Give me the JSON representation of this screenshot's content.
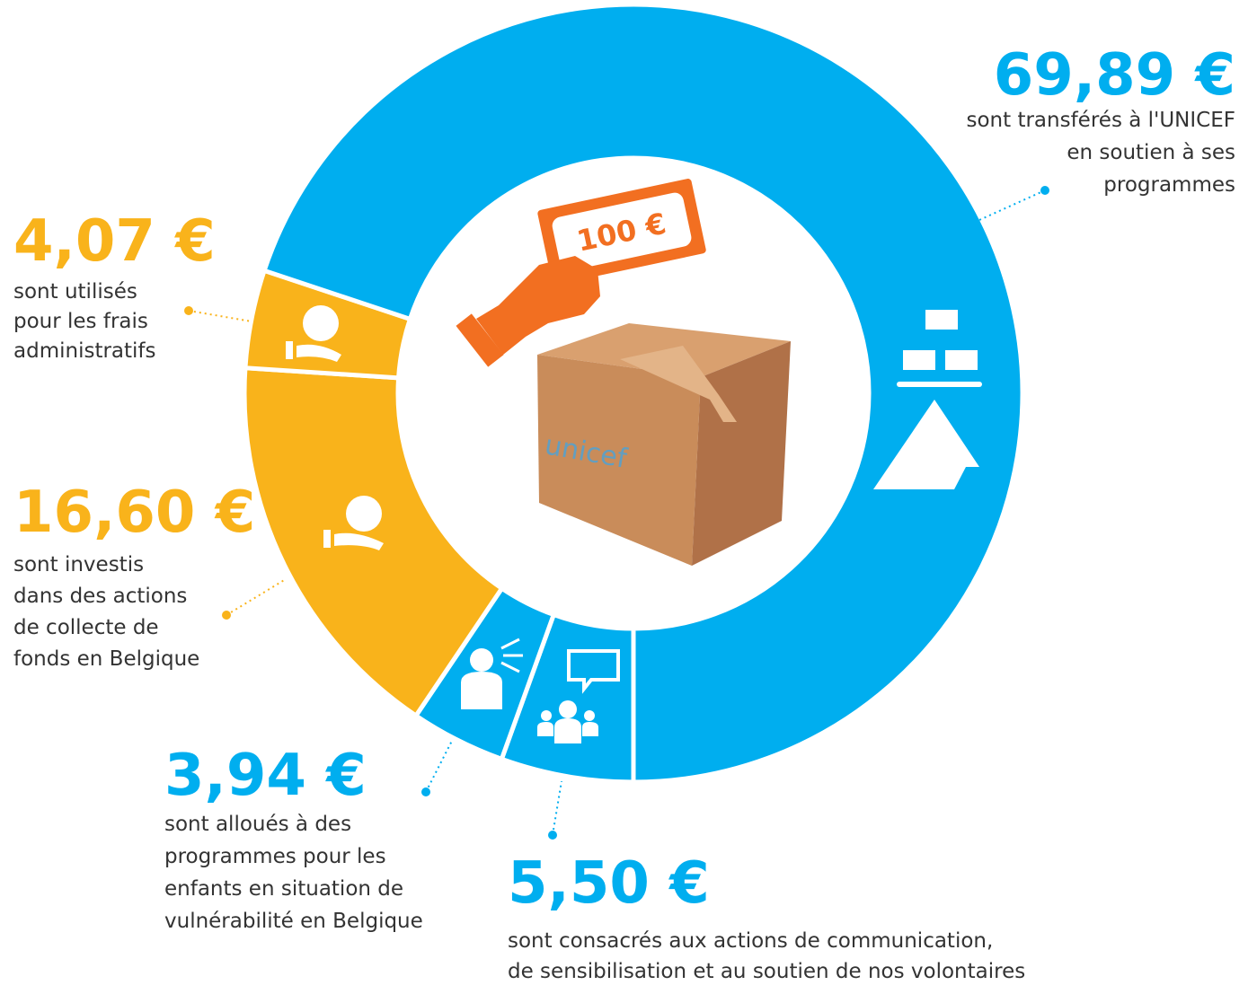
{
  "chart_data": {
    "type": "donut",
    "values": [
      5.5,
      3.94,
      16.6,
      4.07,
      69.89
    ],
    "value_labels": [
      "5,50 €",
      "3,94 €",
      "16,60 €",
      "4,07 €",
      "69,89 €"
    ],
    "colors": [
      "#00aeef",
      "#00aeef",
      "#f9b31b",
      "#f9b31b",
      "#00aeef"
    ],
    "descriptions": [
      [
        "sont consacrés aux actions de communication,",
        "de sensibilisation et au soutien de nos volontaires"
      ],
      [
        "sont alloués à des",
        "programmes pour les",
        "enfants en situation de",
        "vulnérabilité en Belgique"
      ],
      [
        "sont investis",
        "dans des actions",
        "de collecte de",
        "fonds en Belgique"
      ],
      [
        "sont utilisés",
        "pour les frais",
        "administratifs"
      ],
      [
        "sont transférés à l'UNICEF",
        "en soutien à ses",
        "programmes"
      ]
    ]
  },
  "illustration": {
    "banknote": "100 €",
    "box": "unicef"
  }
}
